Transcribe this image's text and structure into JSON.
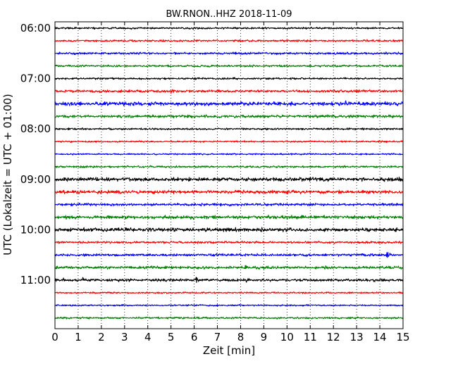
{
  "chart_data": {
    "type": "line",
    "title": "BW.RNON..HHZ 2018-11-09",
    "xlabel": "Zeit  [min]",
    "ylabel": "UTC (Lokalzeit = UTC + 01:00)",
    "xlim": [
      0,
      15
    ],
    "x_ticks": [
      0,
      1,
      2,
      3,
      4,
      5,
      6,
      7,
      8,
      9,
      10,
      11,
      12,
      13,
      14,
      15
    ],
    "x_grid": "dotted",
    "y_ticks": [
      "06:00",
      "07:00",
      "08:00",
      "09:00",
      "10:00",
      "11:00"
    ],
    "trace_minutes": 15,
    "colors": [
      "#000000",
      "#ff0000",
      "#0000ff",
      "#008000"
    ],
    "series": [
      {
        "start": "06:00",
        "color": "#000000",
        "amp": 0.22,
        "events": []
      },
      {
        "start": "06:15",
        "color": "#ff0000",
        "amp": 0.22,
        "events": []
      },
      {
        "start": "06:30",
        "color": "#0000ff",
        "amp": 0.25,
        "events": []
      },
      {
        "start": "06:45",
        "color": "#008000",
        "amp": 0.22,
        "events": [
          {
            "t": 10.0,
            "a": 0.3
          }
        ]
      },
      {
        "start": "07:00",
        "color": "#000000",
        "amp": 0.22,
        "events": []
      },
      {
        "start": "07:15",
        "color": "#ff0000",
        "amp": 0.28,
        "events": [
          {
            "t": 5.0,
            "a": 0.7
          }
        ]
      },
      {
        "start": "07:30",
        "color": "#0000ff",
        "amp": 0.42,
        "events": [
          {
            "t": 2.2,
            "a": 0.9
          },
          {
            "t": 12.5,
            "a": 0.7
          }
        ]
      },
      {
        "start": "07:45",
        "color": "#008000",
        "amp": 0.32,
        "events": [
          {
            "t": 9.6,
            "a": 0.8
          }
        ]
      },
      {
        "start": "08:00",
        "color": "#000000",
        "amp": 0.22,
        "events": [
          {
            "t": 13.0,
            "a": 0.35
          }
        ]
      },
      {
        "start": "08:15",
        "color": "#ff0000",
        "amp": 0.18,
        "events": []
      },
      {
        "start": "08:30",
        "color": "#0000ff",
        "amp": 0.18,
        "events": []
      },
      {
        "start": "08:45",
        "color": "#008000",
        "amp": 0.22,
        "events": [
          {
            "t": 1.3,
            "a": 0.5
          },
          {
            "t": 3.1,
            "a": 0.35
          }
        ]
      },
      {
        "start": "09:00",
        "color": "#000000",
        "amp": 0.42,
        "events": [
          {
            "t": 0.2,
            "a": 0.6
          }
        ]
      },
      {
        "start": "09:15",
        "color": "#ff0000",
        "amp": 0.38,
        "events": [
          {
            "t": 11.8,
            "a": 0.9
          }
        ]
      },
      {
        "start": "09:30",
        "color": "#0000ff",
        "amp": 0.3,
        "events": []
      },
      {
        "start": "09:45",
        "color": "#008000",
        "amp": 0.38,
        "events": [
          {
            "t": 5.9,
            "a": 0.7
          }
        ]
      },
      {
        "start": "10:00",
        "color": "#000000",
        "amp": 0.42,
        "events": [
          {
            "t": 8.9,
            "a": 1.0
          }
        ]
      },
      {
        "start": "10:15",
        "color": "#ff0000",
        "amp": 0.25,
        "events": []
      },
      {
        "start": "10:30",
        "color": "#0000ff",
        "amp": 0.28,
        "events": [
          {
            "t": 14.3,
            "a": 0.8
          }
        ]
      },
      {
        "start": "10:45",
        "color": "#008000",
        "amp": 0.32,
        "events": [
          {
            "t": 2.0,
            "a": 0.6
          },
          {
            "t": 3.6,
            "a": 0.6
          },
          {
            "t": 8.2,
            "a": 0.7
          },
          {
            "t": 11.7,
            "a": 0.6
          },
          {
            "t": 13.4,
            "a": 0.5
          }
        ]
      },
      {
        "start": "11:00",
        "color": "#000000",
        "amp": 0.32,
        "events": [
          {
            "t": 0.4,
            "a": 0.6
          },
          {
            "t": 1.2,
            "a": 0.7
          },
          {
            "t": 6.1,
            "a": 0.8
          },
          {
            "t": 8.2,
            "a": 0.8
          }
        ]
      },
      {
        "start": "11:15",
        "color": "#ff0000",
        "amp": 0.18,
        "events": [
          {
            "t": 4.5,
            "a": 0.35
          }
        ]
      },
      {
        "start": "11:30",
        "color": "#0000ff",
        "amp": 0.18,
        "events": []
      },
      {
        "start": "11:45",
        "color": "#008000",
        "amp": 0.22,
        "events": [
          {
            "t": 6.0,
            "a": 0.3
          }
        ]
      }
    ]
  }
}
